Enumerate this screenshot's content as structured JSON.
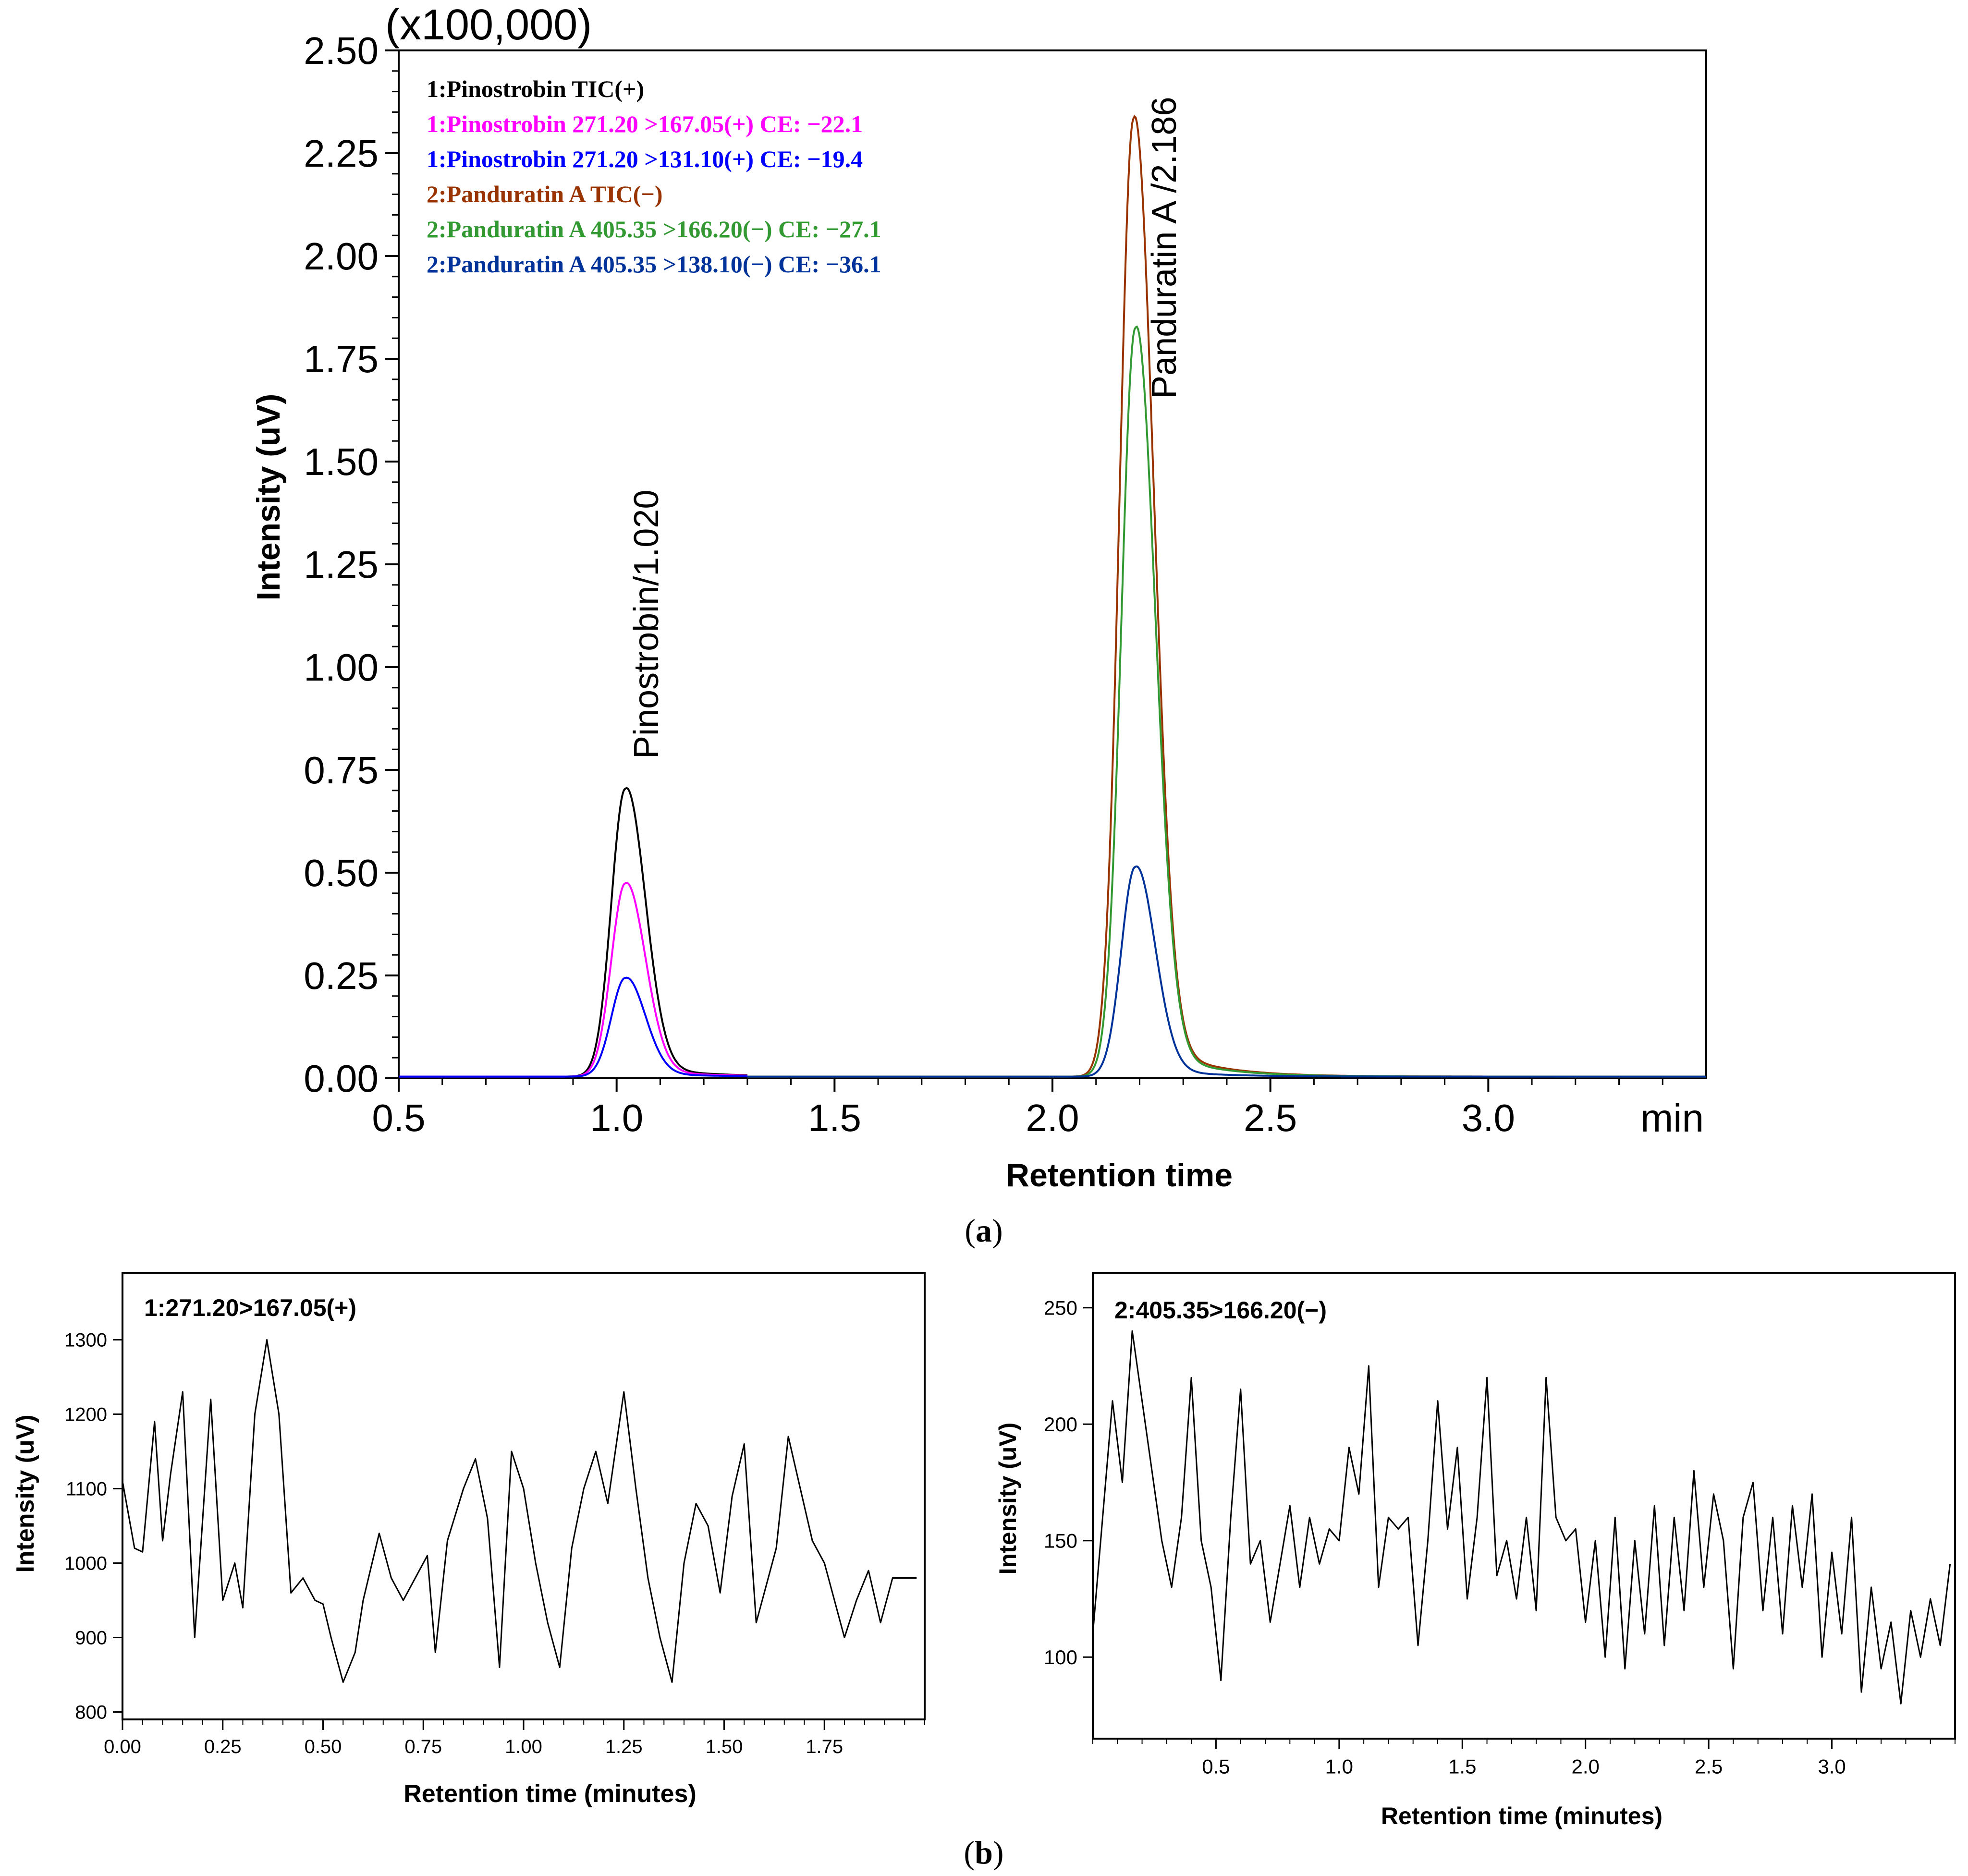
{
  "chart_data": [
    {
      "id": "a",
      "type": "line",
      "caption_open": "(",
      "caption_letter": "a",
      "caption_close": ")",
      "multiplier_label": "(x100,000)",
      "xlabel": "Retention time",
      "ylabel": "Intensity (uV)",
      "x_unit_label": "min",
      "xlim": [
        0.5,
        3.5
      ],
      "ylim": [
        0,
        2.5
      ],
      "x_ticks": [
        "0.5",
        "1.0",
        "1.5",
        "2.0",
        "2.5",
        "3.0"
      ],
      "y_ticks": [
        "0.00",
        "0.25",
        "0.50",
        "0.75",
        "1.00",
        "1.25",
        "1.50",
        "1.75",
        "2.00",
        "2.25",
        "2.50"
      ],
      "legend": [
        {
          "label": "1:Pinostrobin TIC(+)",
          "color": "#000000"
        },
        {
          "label": "1:Pinostrobin 271.20 >167.05(+) CE: −22.1",
          "color": "#ff00ff"
        },
        {
          "label": "1:Pinostrobin 271.20 >131.10(+) CE: −19.4",
          "color": "#0000ff"
        },
        {
          "label": "2:Panduratin A TIC(−)",
          "color": "#993300"
        },
        {
          "label": "2:Panduratin A 405.35 >166.20(−) CE: −27.1",
          "color": "#339933"
        },
        {
          "label": "2:Panduratin A 405.35 >138.10(−) CE: −36.1",
          "color": "#003399"
        }
      ],
      "peak_labels": [
        {
          "text": "Pinostrobin/1.020",
          "x": 1.02,
          "y": 0.78
        },
        {
          "text": "Panduratin A /2.186",
          "x": 2.186,
          "y": 1.68
        }
      ],
      "series": [
        {
          "name": "1:Pinostrobin TIC(+)",
          "color": "#000000",
          "range": [
            0.5,
            1.3
          ],
          "peak_x": 1.02,
          "peak_y": 0.7
        },
        {
          "name": "1:Pinostrobin 271.20 >167.05(+)",
          "color": "#ff00ff",
          "range": [
            0.5,
            1.3
          ],
          "peak_x": 1.02,
          "peak_y": 0.47
        },
        {
          "name": "1:Pinostrobin 271.20 >131.10(+)",
          "color": "#0000ff",
          "range": [
            0.5,
            1.3
          ],
          "peak_x": 1.02,
          "peak_y": 0.24
        },
        {
          "name": "2:Panduratin A TIC(−)",
          "color": "#993300",
          "range": [
            1.3,
            3.5
          ],
          "peak_x": 2.186,
          "peak_y": 2.33
        },
        {
          "name": "2:Panduratin A 405.35 >166.20(−)",
          "color": "#339933",
          "range": [
            1.3,
            3.5
          ],
          "peak_x": 2.19,
          "peak_y": 1.82
        },
        {
          "name": "2:Panduratin A 405.35 >138.10(−)",
          "color": "#003399",
          "range": [
            1.3,
            3.5
          ],
          "peak_x": 2.19,
          "peak_y": 0.51
        }
      ]
    },
    {
      "id": "b1",
      "type": "line",
      "annotation": "1:271.20>167.05(+)",
      "xlabel": "Retention time (minutes)",
      "ylabel": "Intensity (uV)",
      "xlim": [
        0,
        2.0
      ],
      "ylim": [
        790,
        1390
      ],
      "x_ticks": [
        "0.00",
        "0.25",
        "0.50",
        "0.75",
        "1.00",
        "1.25",
        "1.50",
        "1.75"
      ],
      "y_ticks": [
        "800",
        "900",
        "1000",
        "1100",
        "1200",
        "1300"
      ],
      "series": [
        {
          "name": "1:271.20>167.05(+)",
          "color": "#000000",
          "x": [
            0.0,
            0.03,
            0.05,
            0.08,
            0.1,
            0.12,
            0.15,
            0.18,
            0.2,
            0.22,
            0.25,
            0.28,
            0.3,
            0.33,
            0.36,
            0.39,
            0.42,
            0.45,
            0.48,
            0.5,
            0.52,
            0.55,
            0.58,
            0.6,
            0.64,
            0.67,
            0.7,
            0.73,
            0.76,
            0.78,
            0.81,
            0.85,
            0.88,
            0.91,
            0.94,
            0.97,
            1.0,
            1.03,
            1.06,
            1.09,
            1.12,
            1.15,
            1.18,
            1.21,
            1.25,
            1.28,
            1.31,
            1.34,
            1.37,
            1.4,
            1.43,
            1.46,
            1.49,
            1.52,
            1.55,
            1.58,
            1.6,
            1.63,
            1.66,
            1.69,
            1.72,
            1.75,
            1.77,
            1.8,
            1.83,
            1.86,
            1.89,
            1.92,
            1.95,
            1.98
          ],
          "y": [
            1110,
            1020,
            1015,
            1190,
            1030,
            1120,
            1230,
            900,
            1060,
            1220,
            950,
            1000,
            940,
            1200,
            1300,
            1200,
            960,
            980,
            950,
            945,
            900,
            840,
            880,
            950,
            1040,
            980,
            950,
            980,
            1010,
            880,
            1030,
            1100,
            1140,
            1060,
            860,
            1150,
            1100,
            1000,
            920,
            860,
            1020,
            1100,
            1150,
            1080,
            1230,
            1100,
            980,
            900,
            840,
            1000,
            1080,
            1050,
            960,
            1090,
            1160,
            920,
            960,
            1020,
            1170,
            1100,
            1030,
            1000,
            960,
            900,
            950,
            990,
            920,
            980,
            980,
            980
          ]
        }
      ]
    },
    {
      "id": "b2",
      "type": "line",
      "annotation": "2:405.35>166.20(−)",
      "xlabel": "Retention time (minutes)",
      "ylabel": "Intensity (uV)",
      "xlim": [
        0,
        3.5
      ],
      "ylim": [
        65,
        265
      ],
      "x_ticks": [
        "0.5",
        "1.0",
        "1.5",
        "2.0",
        "2.5",
        "3.0"
      ],
      "y_ticks": [
        "100",
        "150",
        "200",
        "250"
      ],
      "series": [
        {
          "name": "2:405.35>166.20(−)",
          "color": "#000000",
          "x": [
            0.0,
            0.04,
            0.08,
            0.12,
            0.16,
            0.2,
            0.24,
            0.28,
            0.32,
            0.36,
            0.4,
            0.44,
            0.48,
            0.52,
            0.56,
            0.6,
            0.64,
            0.68,
            0.72,
            0.76,
            0.8,
            0.84,
            0.88,
            0.92,
            0.96,
            1.0,
            1.04,
            1.08,
            1.12,
            1.16,
            1.2,
            1.24,
            1.28,
            1.32,
            1.36,
            1.4,
            1.44,
            1.48,
            1.52,
            1.56,
            1.6,
            1.64,
            1.68,
            1.72,
            1.76,
            1.8,
            1.84,
            1.88,
            1.92,
            1.96,
            2.0,
            2.04,
            2.08,
            2.12,
            2.16,
            2.2,
            2.24,
            2.28,
            2.32,
            2.36,
            2.4,
            2.44,
            2.48,
            2.52,
            2.56,
            2.6,
            2.64,
            2.68,
            2.72,
            2.76,
            2.8,
            2.84,
            2.88,
            2.92,
            2.96,
            3.0,
            3.04,
            3.08,
            3.12,
            3.16,
            3.2,
            3.24,
            3.28,
            3.32,
            3.36,
            3.4,
            3.44,
            3.48
          ],
          "y": [
            110,
            160,
            210,
            175,
            240,
            210,
            180,
            150,
            130,
            160,
            220,
            150,
            130,
            90,
            160,
            215,
            140,
            150,
            115,
            140,
            165,
            130,
            160,
            140,
            155,
            150,
            190,
            170,
            225,
            130,
            160,
            155,
            160,
            105,
            150,
            210,
            155,
            190,
            125,
            160,
            220,
            135,
            150,
            125,
            160,
            120,
            220,
            160,
            150,
            155,
            115,
            150,
            100,
            160,
            95,
            150,
            110,
            165,
            105,
            160,
            120,
            180,
            130,
            170,
            150,
            95,
            160,
            175,
            120,
            160,
            110,
            165,
            130,
            170,
            100,
            145,
            110,
            160,
            85,
            130,
            95,
            115,
            80,
            120,
            100,
            125,
            105,
            140
          ]
        }
      ]
    }
  ]
}
